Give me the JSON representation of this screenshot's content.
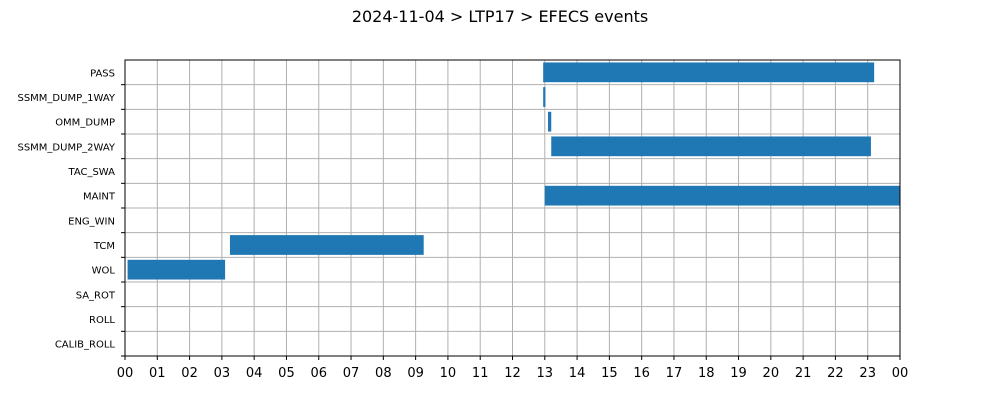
{
  "chart_data": {
    "type": "bar",
    "orientation": "horizontal-gantt",
    "title": "2024-11-04 > LTP17 > EFECS events",
    "xlabel": "",
    "ylabel": "",
    "xlim": [
      0,
      24
    ],
    "x_unit": "hours",
    "x_tick_labels": [
      "00",
      "01",
      "02",
      "03",
      "04",
      "05",
      "06",
      "07",
      "08",
      "09",
      "10",
      "11",
      "12",
      "13",
      "14",
      "15",
      "16",
      "17",
      "18",
      "19",
      "20",
      "21",
      "22",
      "23",
      "00"
    ],
    "grid": true,
    "bar_color": "#1f77b4",
    "categories": [
      "PASS",
      "SSMM_DUMP_1WAY",
      "OMM_DUMP",
      "SSMM_DUMP_2WAY",
      "TAC_SWA",
      "MAINT",
      "ENG_WIN",
      "TCM",
      "WOL",
      "SA_ROT",
      "ROLL",
      "CALIB_ROLL"
    ],
    "events": [
      {
        "category": "PASS",
        "start": 12.95,
        "end": 23.2
      },
      {
        "category": "SSMM_DUMP_1WAY",
        "start": 12.95,
        "end": 13.02
      },
      {
        "category": "OMM_DUMP",
        "start": 13.1,
        "end": 13.2
      },
      {
        "category": "SSMM_DUMP_2WAY",
        "start": 13.2,
        "end": 23.1
      },
      {
        "category": "MAINT",
        "start": 13.0,
        "end": 24.0
      },
      {
        "category": "TCM",
        "start": 3.25,
        "end": 9.25
      },
      {
        "category": "WOL",
        "start": 0.08,
        "end": 3.1
      }
    ]
  }
}
